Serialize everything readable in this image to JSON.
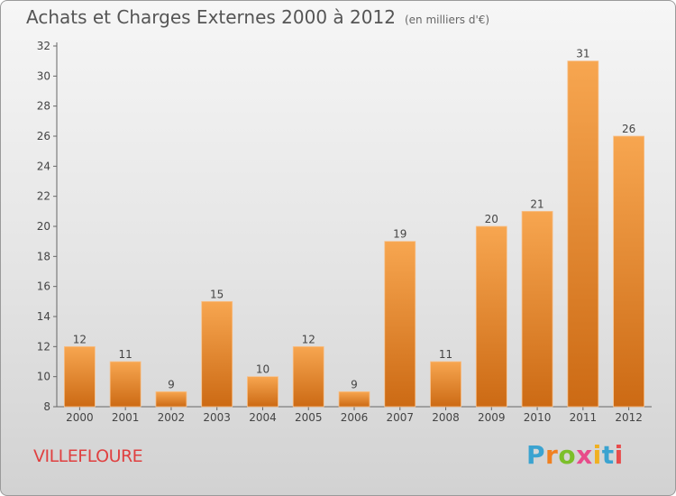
{
  "header": {
    "title": "Achats et Charges Externes 2000 à 2012",
    "unit": "(en milliers d'€)"
  },
  "footer": {
    "commune": "VILLEFLOURE",
    "logo_letters": [
      "P",
      "r",
      "o",
      "x",
      "i",
      "t",
      "i"
    ]
  },
  "colors": {
    "bar_light": "#f7a650",
    "bar_dark": "#cc6a14",
    "title": "#555555",
    "commune": "#e04040",
    "logo": [
      "#3ba3d0",
      "#f08020",
      "#7cbf2a",
      "#e84b8a",
      "#f0b020",
      "#3ba3d0",
      "#e84b4b"
    ]
  },
  "chart_data": {
    "type": "bar",
    "title": "Achats et Charges Externes 2000 à 2012",
    "subtitle": "(en milliers d'€)",
    "xlabel": "",
    "ylabel": "",
    "categories": [
      "2000",
      "2001",
      "2002",
      "2003",
      "2004",
      "2005",
      "2006",
      "2007",
      "2008",
      "2009",
      "2010",
      "2011",
      "2012"
    ],
    "values": [
      12,
      11,
      9,
      15,
      10,
      12,
      9,
      19,
      11,
      20,
      21,
      31,
      26
    ],
    "ylim": [
      8,
      32
    ],
    "yticks": [
      8,
      10,
      12,
      14,
      16,
      18,
      20,
      22,
      24,
      26,
      28,
      30,
      32
    ],
    "grid": false
  }
}
